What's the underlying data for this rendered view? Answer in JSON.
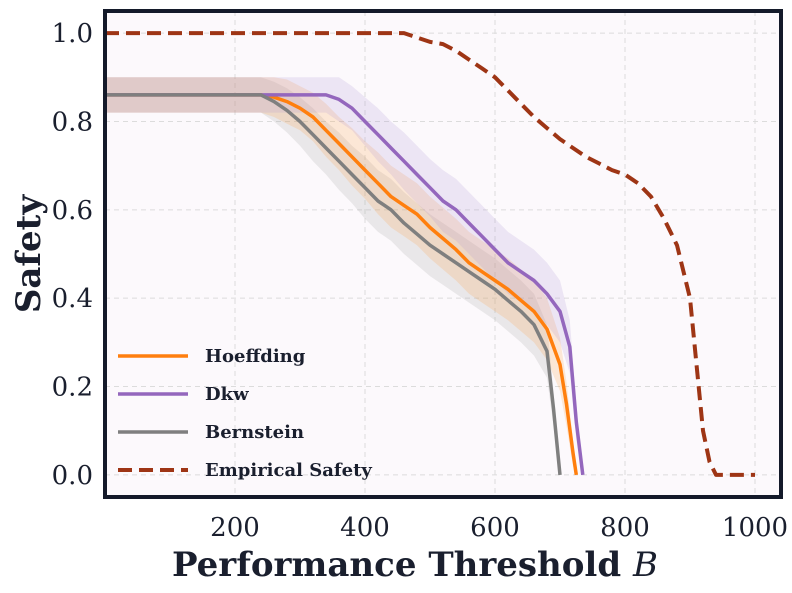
{
  "chart_data": {
    "type": "line",
    "title": "",
    "xlabel": "Performance Threshold",
    "xlabel_var": "B",
    "ylabel": "Safety",
    "xlim": [
      0,
      1040
    ],
    "ylim": [
      -0.05,
      1.05
    ],
    "xticks": [
      200,
      400,
      600,
      800,
      1000
    ],
    "xtick_labels": [
      "200",
      "400",
      "600",
      "800",
      "1000"
    ],
    "yticks": [
      0.0,
      0.2,
      0.4,
      0.6,
      0.8,
      1.0
    ],
    "ytick_labels": [
      "0.0",
      "0.2",
      "0.4",
      "0.6",
      "0.8",
      "1.0"
    ],
    "grid": true,
    "legend_position": "lower-left",
    "series": [
      {
        "name": "Hoeffding",
        "color": "#ff7f0e",
        "style": "solid",
        "x": [
          0,
          200,
          240,
          260,
          280,
          300,
          320,
          340,
          360,
          380,
          400,
          420,
          440,
          460,
          480,
          500,
          520,
          540,
          560,
          580,
          600,
          620,
          640,
          660,
          680,
          700,
          710,
          720,
          725
        ],
        "y": [
          0.86,
          0.86,
          0.86,
          0.855,
          0.845,
          0.83,
          0.81,
          0.78,
          0.75,
          0.72,
          0.69,
          0.66,
          0.63,
          0.61,
          0.59,
          0.56,
          0.535,
          0.51,
          0.48,
          0.46,
          0.44,
          0.42,
          0.395,
          0.37,
          0.33,
          0.25,
          0.16,
          0.05,
          0.0
        ],
        "band": [
          0.04,
          0.04,
          0.04,
          0.045,
          0.05,
          0.05,
          0.055,
          0.06,
          0.06,
          0.065,
          0.065,
          0.07,
          0.07,
          0.07,
          0.07,
          0.07,
          0.07,
          0.07,
          0.07,
          0.07,
          0.07,
          0.07,
          0.07,
          0.07,
          0.07,
          0.06,
          0.05,
          0.03,
          0.0
        ]
      },
      {
        "name": "Dkw",
        "color": "#9467bd",
        "style": "solid",
        "x": [
          0,
          200,
          250,
          300,
          320,
          340,
          360,
          380,
          400,
          420,
          440,
          460,
          480,
          500,
          520,
          540,
          560,
          580,
          600,
          620,
          640,
          660,
          680,
          700,
          715,
          725,
          735
        ],
        "y": [
          0.86,
          0.86,
          0.86,
          0.86,
          0.86,
          0.86,
          0.85,
          0.83,
          0.8,
          0.77,
          0.74,
          0.71,
          0.68,
          0.65,
          0.62,
          0.6,
          0.57,
          0.54,
          0.51,
          0.48,
          0.46,
          0.44,
          0.41,
          0.37,
          0.29,
          0.12,
          0.0
        ],
        "band": [
          0.04,
          0.04,
          0.04,
          0.04,
          0.04,
          0.04,
          0.05,
          0.05,
          0.055,
          0.06,
          0.06,
          0.065,
          0.065,
          0.065,
          0.07,
          0.07,
          0.07,
          0.07,
          0.07,
          0.07,
          0.07,
          0.07,
          0.07,
          0.07,
          0.06,
          0.04,
          0.0
        ]
      },
      {
        "name": "Bernstein",
        "color": "#7f7f7f",
        "style": "solid",
        "x": [
          0,
          200,
          240,
          260,
          280,
          300,
          320,
          340,
          360,
          380,
          400,
          420,
          440,
          460,
          480,
          500,
          520,
          540,
          560,
          580,
          600,
          620,
          640,
          660,
          680,
          690,
          700
        ],
        "y": [
          0.86,
          0.86,
          0.86,
          0.845,
          0.825,
          0.8,
          0.77,
          0.74,
          0.71,
          0.68,
          0.65,
          0.62,
          0.6,
          0.57,
          0.545,
          0.52,
          0.5,
          0.48,
          0.46,
          0.44,
          0.42,
          0.395,
          0.37,
          0.34,
          0.28,
          0.15,
          0.0
        ],
        "band": [
          0.04,
          0.04,
          0.04,
          0.045,
          0.05,
          0.055,
          0.06,
          0.06,
          0.065,
          0.065,
          0.07,
          0.07,
          0.07,
          0.07,
          0.07,
          0.07,
          0.07,
          0.07,
          0.07,
          0.07,
          0.07,
          0.07,
          0.07,
          0.07,
          0.06,
          0.04,
          0.0
        ]
      },
      {
        "name": "Empirical Safety",
        "color": "#9e3515",
        "style": "dashed",
        "x": [
          0,
          100,
          200,
          300,
          400,
          460,
          480,
          500,
          520,
          540,
          560,
          580,
          600,
          620,
          640,
          660,
          680,
          700,
          720,
          740,
          760,
          780,
          800,
          820,
          840,
          860,
          880,
          900,
          910,
          920,
          930,
          940,
          960,
          1000
        ],
        "y": [
          1.0,
          1.0,
          1.0,
          1.0,
          1.0,
          1.0,
          0.99,
          0.98,
          0.975,
          0.96,
          0.94,
          0.92,
          0.9,
          0.87,
          0.84,
          0.81,
          0.785,
          0.76,
          0.74,
          0.72,
          0.705,
          0.69,
          0.68,
          0.66,
          0.63,
          0.58,
          0.52,
          0.4,
          0.25,
          0.1,
          0.03,
          0.0,
          0.0,
          0.0
        ]
      }
    ]
  }
}
